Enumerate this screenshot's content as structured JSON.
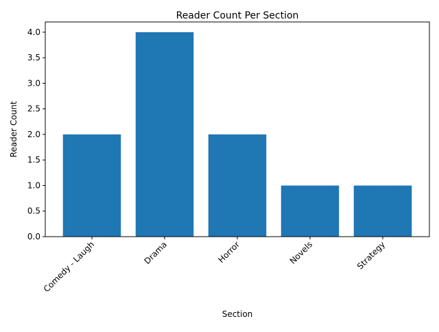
{
  "chart_data": {
    "type": "bar",
    "title": "Reader Count Per Section",
    "xlabel": "Section",
    "ylabel": "Reader Count",
    "categories": [
      "Comedy - Laugh",
      "Drama",
      "Horror",
      "Novels",
      "Strategy"
    ],
    "values": [
      2,
      4,
      2,
      1,
      1
    ],
    "ylim": [
      0,
      4.2
    ],
    "yticks": [
      "0.0",
      "0.5",
      "1.0",
      "1.5",
      "2.0",
      "2.5",
      "3.0",
      "3.5",
      "4.0"
    ],
    "xtick_rotation_deg": 45,
    "bar_color": "#1f77b4",
    "grid": false,
    "legend": "none"
  }
}
